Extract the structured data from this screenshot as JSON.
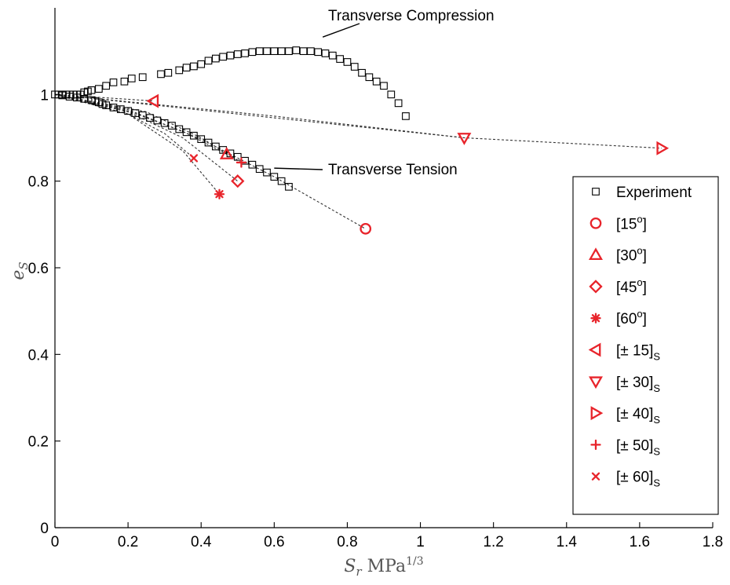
{
  "chart_data": {
    "type": "scatter",
    "xlabel": "S_r MPa^1/3",
    "ylabel": "e_S",
    "xlim": [
      0,
      1.8
    ],
    "ylim": [
      0,
      1.2
    ],
    "xticks": [
      "0",
      "0.2",
      "0.4",
      "0.6",
      "0.8",
      "1",
      "1.2",
      "1.4",
      "1.6",
      "1.8"
    ],
    "yticks": [
      "0",
      "0.2",
      "0.4",
      "0.6",
      "0.8",
      "1"
    ],
    "grid": false,
    "legend_position": "right",
    "colors": {
      "experiment": "#000000",
      "model": "#e8242b",
      "dashed": "#333333"
    },
    "annotations": [
      {
        "text": "Transverse Compression",
        "x": 0.75,
        "y": 1.19,
        "point_x": 0.75,
        "point_y": 1.1
      },
      {
        "text": "Transverse Tension",
        "x": 0.74,
        "y": 0.83,
        "point_x": 0.6,
        "point_y": 0.83
      }
    ],
    "experiment": {
      "name": "Experiment",
      "compression": [
        [
          0,
          1.0
        ],
        [
          0.01,
          1.0
        ],
        [
          0.02,
          1.0
        ],
        [
          0.03,
          1.0
        ],
        [
          0.04,
          1.0
        ],
        [
          0.05,
          1.0
        ],
        [
          0.06,
          1.0
        ],
        [
          0.07,
          1.0
        ],
        [
          0.08,
          1.005
        ],
        [
          0.09,
          1.007
        ],
        [
          0.1,
          1.01
        ],
        [
          0.12,
          1.013
        ],
        [
          0.14,
          1.02
        ],
        [
          0.16,
          1.028
        ],
        [
          0.19,
          1.03
        ],
        [
          0.21,
          1.037
        ],
        [
          0.24,
          1.04
        ],
        [
          0.29,
          1.047
        ],
        [
          0.31,
          1.05
        ],
        [
          0.34,
          1.056
        ],
        [
          0.36,
          1.062
        ],
        [
          0.38,
          1.065
        ],
        [
          0.4,
          1.07
        ],
        [
          0.42,
          1.078
        ],
        [
          0.44,
          1.083
        ],
        [
          0.46,
          1.087
        ],
        [
          0.48,
          1.09
        ],
        [
          0.5,
          1.093
        ],
        [
          0.52,
          1.095
        ],
        [
          0.54,
          1.098
        ],
        [
          0.56,
          1.1
        ],
        [
          0.58,
          1.1
        ],
        [
          0.6,
          1.1
        ],
        [
          0.62,
          1.1
        ],
        [
          0.64,
          1.1
        ],
        [
          0.66,
          1.102
        ],
        [
          0.68,
          1.1
        ],
        [
          0.7,
          1.1
        ],
        [
          0.72,
          1.098
        ],
        [
          0.74,
          1.095
        ],
        [
          0.76,
          1.09
        ],
        [
          0.78,
          1.082
        ],
        [
          0.8,
          1.075
        ],
        [
          0.82,
          1.064
        ],
        [
          0.84,
          1.05
        ],
        [
          0.86,
          1.04
        ],
        [
          0.88,
          1.03
        ],
        [
          0.9,
          1.02
        ],
        [
          0.92,
          1.0
        ],
        [
          0.94,
          0.98
        ],
        [
          0.96,
          0.95
        ]
      ],
      "tension": [
        [
          0.02,
          0.998
        ],
        [
          0.04,
          0.995
        ],
        [
          0.06,
          0.993
        ],
        [
          0.08,
          0.99
        ],
        [
          0.1,
          0.987
        ],
        [
          0.11,
          0.985
        ],
        [
          0.12,
          0.982
        ],
        [
          0.13,
          0.978
        ],
        [
          0.14,
          0.975
        ],
        [
          0.16,
          0.97
        ],
        [
          0.18,
          0.966
        ],
        [
          0.2,
          0.962
        ],
        [
          0.22,
          0.957
        ],
        [
          0.24,
          0.952
        ],
        [
          0.26,
          0.946
        ],
        [
          0.28,
          0.94
        ],
        [
          0.3,
          0.934
        ],
        [
          0.32,
          0.928
        ],
        [
          0.34,
          0.92
        ],
        [
          0.36,
          0.913
        ],
        [
          0.38,
          0.905
        ],
        [
          0.4,
          0.897
        ],
        [
          0.42,
          0.889
        ],
        [
          0.44,
          0.88
        ],
        [
          0.46,
          0.872
        ],
        [
          0.48,
          0.864
        ],
        [
          0.5,
          0.856
        ],
        [
          0.52,
          0.847
        ],
        [
          0.54,
          0.838
        ],
        [
          0.56,
          0.828
        ],
        [
          0.58,
          0.82
        ],
        [
          0.6,
          0.81
        ],
        [
          0.62,
          0.8
        ],
        [
          0.64,
          0.787
        ]
      ]
    },
    "series": [
      {
        "name": "[15°]",
        "label_main": "[15",
        "label_sup": "o",
        "label_end": "]",
        "label_sub": "",
        "marker": "circle",
        "points": [
          [
            0.85,
            0.69
          ]
        ],
        "path": [
          [
            0,
            1.0
          ],
          [
            0.2,
            0.965
          ],
          [
            0.4,
            0.897
          ],
          [
            0.6,
            0.81
          ],
          [
            0.85,
            0.69
          ]
        ]
      },
      {
        "name": "[30°]",
        "label_main": "[30",
        "label_sup": "o",
        "label_end": "]",
        "label_sub": "",
        "marker": "triangle-up",
        "points": [
          [
            0.47,
            0.862
          ]
        ],
        "path": [
          [
            0,
            1.0
          ],
          [
            0.2,
            0.962
          ],
          [
            0.35,
            0.915
          ],
          [
            0.47,
            0.862
          ]
        ]
      },
      {
        "name": "[45°]",
        "label_main": "[45",
        "label_sup": "o",
        "label_end": "]",
        "label_sub": "",
        "marker": "diamond",
        "points": [
          [
            0.5,
            0.8
          ]
        ],
        "path": [
          [
            0,
            1.0
          ],
          [
            0.2,
            0.96
          ],
          [
            0.35,
            0.9
          ],
          [
            0.5,
            0.8
          ]
        ]
      },
      {
        "name": "[60°]",
        "label_main": "[60",
        "label_sup": "o",
        "label_end": "]",
        "label_sub": "",
        "marker": "star",
        "points": [
          [
            0.45,
            0.77
          ]
        ],
        "path": [
          [
            0,
            1.0
          ],
          [
            0.2,
            0.955
          ],
          [
            0.35,
            0.87
          ],
          [
            0.45,
            0.77
          ]
        ]
      },
      {
        "name": "[± 15]S",
        "label_main": "[± 15]",
        "label_sup": "",
        "label_end": "",
        "label_sub": "S",
        "marker": "triangle-left",
        "points": [
          [
            0.27,
            0.985
          ]
        ],
        "path": [
          [
            0,
            1.0
          ],
          [
            0.27,
            0.985
          ]
        ]
      },
      {
        "name": "[± 30]S",
        "label_main": "[± 30]",
        "label_sup": "",
        "label_end": "",
        "label_sub": "S",
        "marker": "triangle-down",
        "points": [
          [
            1.12,
            0.9
          ]
        ],
        "path": [
          [
            0,
            1.0
          ],
          [
            0.6,
            0.95
          ],
          [
            1.12,
            0.9
          ]
        ]
      },
      {
        "name": "[± 40]S",
        "label_main": "[± 40]",
        "label_sup": "",
        "label_end": "",
        "label_sub": "S",
        "marker": "triangle-right",
        "points": [
          [
            1.66,
            0.876
          ]
        ],
        "path": [
          [
            0,
            1.0
          ],
          [
            0.5,
            0.955
          ],
          [
            1.12,
            0.9
          ],
          [
            1.66,
            0.876
          ]
        ]
      },
      {
        "name": "[± 50]S",
        "label_main": "[± 50]",
        "label_sup": "",
        "label_end": "",
        "label_sub": "S",
        "marker": "plus",
        "points": [
          [
            0.51,
            0.843
          ]
        ],
        "path": [
          [
            0,
            1.0
          ],
          [
            0.25,
            0.96
          ],
          [
            0.4,
            0.9
          ],
          [
            0.51,
            0.843
          ]
        ]
      },
      {
        "name": "[± 60]S",
        "label_main": "[± 60]",
        "label_sup": "",
        "label_end": "",
        "label_sub": "S",
        "marker": "x",
        "points": [
          [
            0.38,
            0.853
          ]
        ],
        "path": [
          [
            0,
            1.0
          ],
          [
            0.2,
            0.955
          ],
          [
            0.3,
            0.91
          ],
          [
            0.38,
            0.853
          ]
        ]
      }
    ]
  }
}
